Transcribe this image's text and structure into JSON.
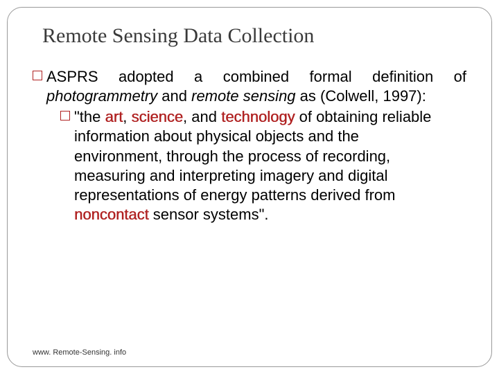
{
  "title": "Remote Sensing Data Collection",
  "bullet1": {
    "part1": "ASPRS adopted a combined formal definition of ",
    "photogrammetry": "photogrammetry",
    "and": " and ",
    "remote_sensing": "remote sensing",
    "part2": " as (Colwell, 1997):"
  },
  "bullet2": {
    "p1": "\"the ",
    "art": "art",
    "c1": ", ",
    "science": "science",
    "c2": ", and ",
    "technology": "technology",
    "p2": " of obtaining reliable information about physical objects and the environment, through the process of recording, measuring and interpreting imagery and digital representations of energy patterns derived from ",
    "noncontact": "noncontact",
    "p3": " sensor systems\"."
  },
  "footer": "www. Remote-Sensing. info",
  "colors": {
    "keyword": "#b02222",
    "border": "#999999",
    "title": "#3a3a3a"
  }
}
